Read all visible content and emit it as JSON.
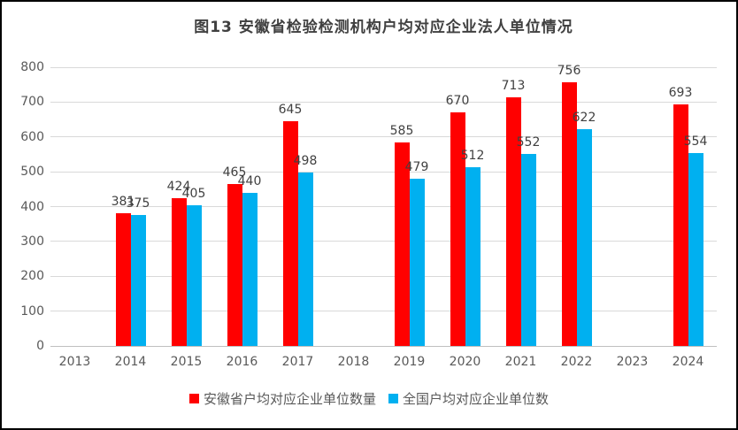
{
  "title": "图13 安徽省检验检测机构户均对应企业法人单位情况",
  "colors": {
    "anhui_series": "#ff0000",
    "national_series": "#00b0f0",
    "gridline": "#d9d9d9",
    "axis_line": "#bfbfbf",
    "tick_label": "#595959",
    "data_label": "#404040",
    "frame_border": "#000000",
    "background": "#ffffff"
  },
  "chart_data": {
    "type": "bar",
    "title": "图13 安徽省检验检测机构户均对应企业法人单位情况",
    "categories": [
      "2013",
      "2014",
      "2015",
      "2016",
      "2017",
      "2018",
      "2019",
      "2020",
      "2021",
      "2022",
      "2023",
      "2024"
    ],
    "series": [
      {
        "name": "安徽省户均对应企业单位数量",
        "color": "#ff0000",
        "values": [
          null,
          381,
          424,
          465,
          645,
          null,
          585,
          670,
          713,
          756,
          null,
          693
        ]
      },
      {
        "name": "全国户均对应企业单位数",
        "color": "#00b0f0",
        "values": [
          null,
          375,
          405,
          440,
          498,
          null,
          479,
          512,
          552,
          622,
          null,
          554
        ]
      }
    ],
    "xlabel": "",
    "ylabel": "",
    "ylim": [
      0,
      800
    ],
    "ytick_step": 100,
    "yticks": [
      0,
      100,
      200,
      300,
      400,
      500,
      600,
      700,
      800
    ],
    "grid": true,
    "data_labels": true,
    "legend_position": "bottom"
  }
}
